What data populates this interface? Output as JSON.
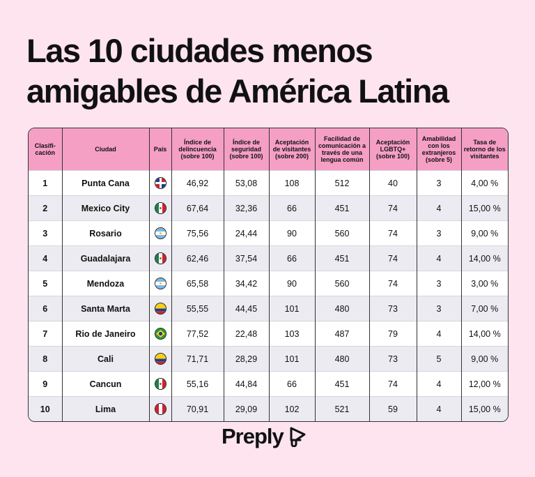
{
  "title_line1": "Las 10 ciudades menos",
  "title_line2": "amigables de América Latina",
  "headers": [
    "Clasifi-cación",
    "Ciudad",
    "País",
    "Índice de delincuencia (sobre 100)",
    "Índice de seguridad (sobre 100)",
    "Aceptación de visitantes (sobre 200)",
    "Facilidad de comunicación a través de una lengua común",
    "Aceptación LGBTQ+ (sobre 100)",
    "Amabilidad con los extranjeros (sobre 5)",
    "Tasa de retorno de los visitantes"
  ],
  "rows": [
    {
      "rank": "1",
      "city": "Punta Cana",
      "flag": "dominican-republic",
      "crime": "46,92",
      "safety": "53,08",
      "visitors": "108",
      "language": "512",
      "lgbtq": "40",
      "friendliness": "3",
      "return": "4,00 %"
    },
    {
      "rank": "2",
      "city": "Mexico City",
      "flag": "mexico",
      "crime": "67,64",
      "safety": "32,36",
      "visitors": "66",
      "language": "451",
      "lgbtq": "74",
      "friendliness": "4",
      "return": "15,00 %"
    },
    {
      "rank": "3",
      "city": "Rosario",
      "flag": "argentina",
      "crime": "75,56",
      "safety": "24,44",
      "visitors": "90",
      "language": "560",
      "lgbtq": "74",
      "friendliness": "3",
      "return": "9,00 %"
    },
    {
      "rank": "4",
      "city": "Guadalajara",
      "flag": "mexico",
      "crime": "62,46",
      "safety": "37,54",
      "visitors": "66",
      "language": "451",
      "lgbtq": "74",
      "friendliness": "4",
      "return": "14,00 %"
    },
    {
      "rank": "5",
      "city": "Mendoza",
      "flag": "argentina",
      "crime": "65,58",
      "safety": "34,42",
      "visitors": "90",
      "language": "560",
      "lgbtq": "74",
      "friendliness": "3",
      "return": "3,00 %"
    },
    {
      "rank": "6",
      "city": "Santa Marta",
      "flag": "colombia",
      "crime": "55,55",
      "safety": "44,45",
      "visitors": "101",
      "language": "480",
      "lgbtq": "73",
      "friendliness": "3",
      "return": "7,00 %"
    },
    {
      "rank": "7",
      "city": "Rio de Janeiro",
      "flag": "brazil",
      "crime": "77,52",
      "safety": "22,48",
      "visitors": "103",
      "language": "487",
      "lgbtq": "79",
      "friendliness": "4",
      "return": "14,00 %"
    },
    {
      "rank": "8",
      "city": "Cali",
      "flag": "colombia",
      "crime": "71,71",
      "safety": "28,29",
      "visitors": "101",
      "language": "480",
      "lgbtq": "73",
      "friendliness": "5",
      "return": "9,00 %"
    },
    {
      "rank": "9",
      "city": "Cancun",
      "flag": "mexico",
      "crime": "55,16",
      "safety": "44,84",
      "visitors": "66",
      "language": "451",
      "lgbtq": "74",
      "friendliness": "4",
      "return": "12,00 %"
    },
    {
      "rank": "10",
      "city": "Lima",
      "flag": "peru",
      "crime": "70,91",
      "safety": "29,09",
      "visitors": "102",
      "language": "521",
      "lgbtq": "59",
      "friendliness": "4",
      "return": "15,00 %"
    }
  ],
  "logo": "Preply",
  "colors": {
    "background": "#fde4ee",
    "header": "#f59fc5",
    "row_alt": "#ecebf1"
  }
}
